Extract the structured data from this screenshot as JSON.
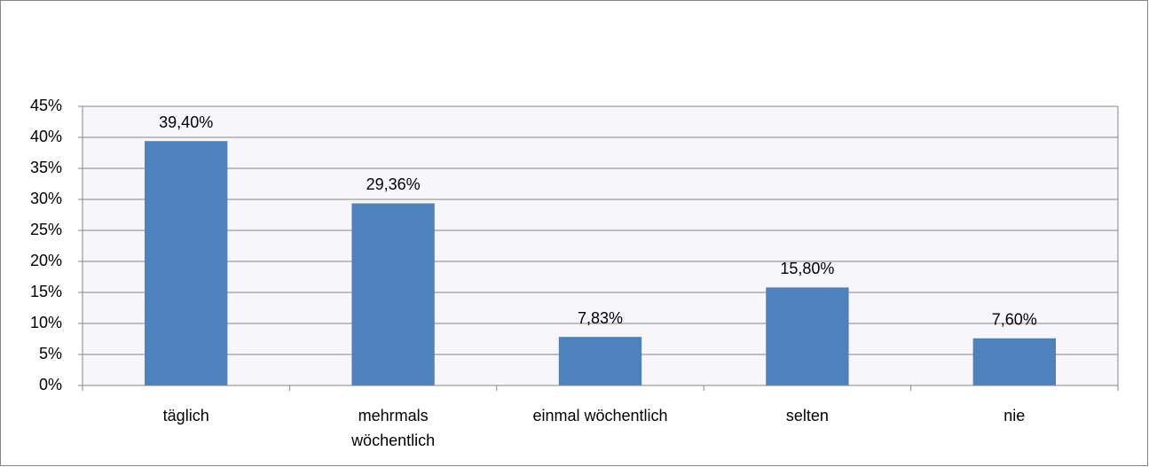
{
  "chart_data": {
    "type": "bar",
    "categories": [
      "täglich",
      "mehrmals\nwöchentlich",
      "einmal wöchentlich",
      "selten",
      "nie"
    ],
    "values": [
      39.4,
      29.36,
      7.83,
      15.8,
      7.6
    ],
    "value_labels": [
      "39,40%",
      "29,36%",
      "7,83%",
      "15,80%",
      "7,60%"
    ],
    "color": "#4f81bd",
    "ylim": [
      0,
      45
    ],
    "yticks": [
      {
        "value": 0,
        "label": "0%"
      },
      {
        "value": 5,
        "label": "5%"
      },
      {
        "value": 10,
        "label": "10%"
      },
      {
        "value": 15,
        "label": "15%"
      },
      {
        "value": 20,
        "label": "20%"
      },
      {
        "value": 25,
        "label": "25%"
      },
      {
        "value": 30,
        "label": "30%"
      },
      {
        "value": 35,
        "label": "35%"
      },
      {
        "value": 40,
        "label": "40%"
      },
      {
        "value": 45,
        "label": "45%"
      }
    ],
    "grid": true
  }
}
